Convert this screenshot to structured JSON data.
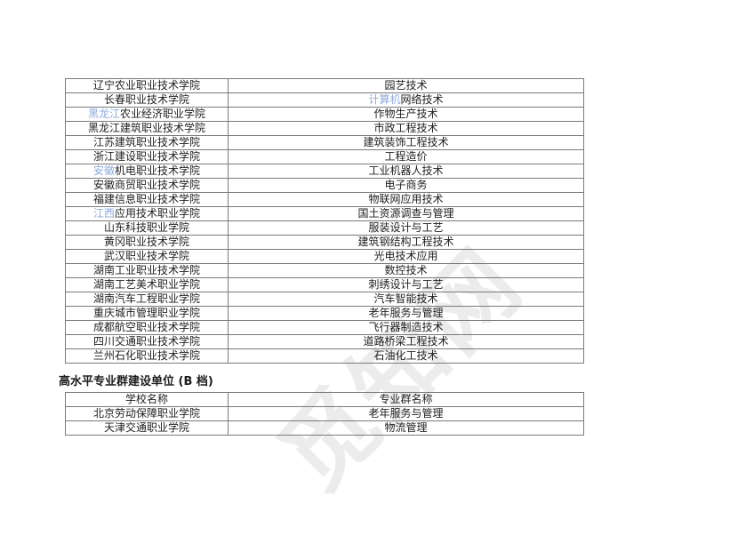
{
  "watermark": {
    "text": "觅知网",
    "color": "#ececec"
  },
  "colors": {
    "highlight_blue": "#8ea9db",
    "table_border": "#7a7a7a",
    "text": "#212121"
  },
  "section_a": {
    "table": {
      "rows": [
        {
          "school_hl": "",
          "school": "辽宁农业职业技术学院",
          "major_hl": "",
          "major": "园艺技术"
        },
        {
          "school_hl": "",
          "school": "长春职业技术学院",
          "major_hl": "计算机",
          "major": "网络技术"
        },
        {
          "school_hl": "黑龙江",
          "school": "农业经济职业学院",
          "major_hl": "",
          "major": "作物生产技术"
        },
        {
          "school_hl": "",
          "school": "黑龙江建筑职业技术学院",
          "major_hl": "",
          "major": "市政工程技术"
        },
        {
          "school_hl": "",
          "school": "江苏建筑职业技术学院",
          "major_hl": "",
          "major": "建筑装饰工程技术"
        },
        {
          "school_hl": "",
          "school": "浙江建设职业技术学院",
          "major_hl": "",
          "major": "工程造价"
        },
        {
          "school_hl": "安徽",
          "school": "机电职业技术学院",
          "major_hl": "",
          "major": "工业机器人技术"
        },
        {
          "school_hl": "",
          "school": "安徽商贸职业技术学院",
          "major_hl": "",
          "major": "电子商务"
        },
        {
          "school_hl": "",
          "school": "福建信息职业技术学院",
          "major_hl": "",
          "major": "物联网应用技术"
        },
        {
          "school_hl": "江西",
          "school": "应用技术职业学院",
          "major_hl": "",
          "major": "国土资源调查与管理"
        },
        {
          "school_hl": "",
          "school": "山东科技职业学院",
          "major_hl": "",
          "major": "服装设计与工艺"
        },
        {
          "school_hl": "",
          "school": "黄冈职业技术学院",
          "major_hl": "",
          "major": "建筑钢结构工程技术"
        },
        {
          "school_hl": "",
          "school": "武汉职业技术学院",
          "major_hl": "",
          "major": "光电技术应用"
        },
        {
          "school_hl": "",
          "school": "湖南工业职业技术学院",
          "major_hl": "",
          "major": "数控技术"
        },
        {
          "school_hl": "",
          "school": "湖南工艺美术职业学院",
          "major_hl": "",
          "major": "刺绣设计与工艺"
        },
        {
          "school_hl": "",
          "school": "湖南汽车工程职业学院",
          "major_hl": "",
          "major": "汽车智能技术"
        },
        {
          "school_hl": "",
          "school": "重庆城市管理职业学院",
          "major_hl": "",
          "major": "老年服务与管理"
        },
        {
          "school_hl": "",
          "school": "成都航空职业技术学院",
          "major_hl": "",
          "major": "飞行器制造技术"
        },
        {
          "school_hl": "",
          "school": "四川交通职业技术学院",
          "major_hl": "",
          "major": "道路桥梁工程技术"
        },
        {
          "school_hl": "",
          "school": "兰州石化职业技术学院",
          "major_hl": "",
          "major": "石油化工技术"
        }
      ]
    }
  },
  "section_b": {
    "heading": "高水平专业群建设单位 (B 档)",
    "table": {
      "headers": [
        "学校名称",
        "专业群名称"
      ],
      "rows": [
        {
          "school": "北京劳动保障职业学院",
          "group": "老年服务与管理"
        },
        {
          "school": "天津交通职业学院",
          "group": "物流管理"
        }
      ]
    }
  }
}
